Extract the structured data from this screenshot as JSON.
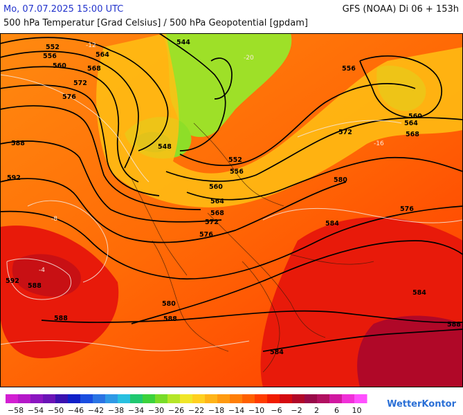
{
  "header": {
    "datetime": "Mo, 07.07.2025 15:00 UTC",
    "model": "GFS (NOAA) Di 06 + 153h",
    "subtitle": "500 hPa Temperatur [Grad Celsius] / 500 hPa Geopotential [gpdam]"
  },
  "legend": {
    "labels": [
      "-58",
      "-54",
      "-50",
      "-46",
      "-42",
      "-38",
      "-34",
      "-30",
      "-26",
      "-22",
      "-18",
      "-14",
      "-10",
      "-6",
      "-2",
      "2",
      "6",
      "10"
    ],
    "colors": [
      "#d21fd2",
      "#b418c8",
      "#8a16c0",
      "#6a14b6",
      "#3a12b0",
      "#1020c8",
      "#1a4ee0",
      "#2a74e4",
      "#2e9ae6",
      "#28c0e0",
      "#20c870",
      "#3cd23c",
      "#78dc28",
      "#b4e628",
      "#f0e628",
      "#ffd020",
      "#ffb418",
      "#ff9a10",
      "#ff7e08",
      "#ff6000",
      "#ff3c00",
      "#f01c00",
      "#d40a10",
      "#b00828",
      "#980a48",
      "#b01060",
      "#d018a0",
      "#f030d8",
      "#ff50ff"
    ]
  },
  "contour_labels": [
    "552",
    "556",
    "560",
    "564",
    "568",
    "572",
    "576",
    "588",
    "592",
    "544",
    "548",
    "556",
    "560",
    "564",
    "568",
    "572",
    "576",
    "580",
    "584",
    "588",
    "592",
    "552",
    "556",
    "560",
    "564",
    "568",
    "572",
    "576",
    "580",
    "584",
    "588",
    "584",
    "588",
    "588"
  ],
  "temp_labels": [
    "-12",
    "-16",
    "-20",
    "-8",
    "-4"
  ],
  "brand": "WetterKontor",
  "colors": {
    "warm": "#ff7a08",
    "hot": "#e81a0a",
    "cold": "#7ad628",
    "gold": "#ffb418"
  }
}
